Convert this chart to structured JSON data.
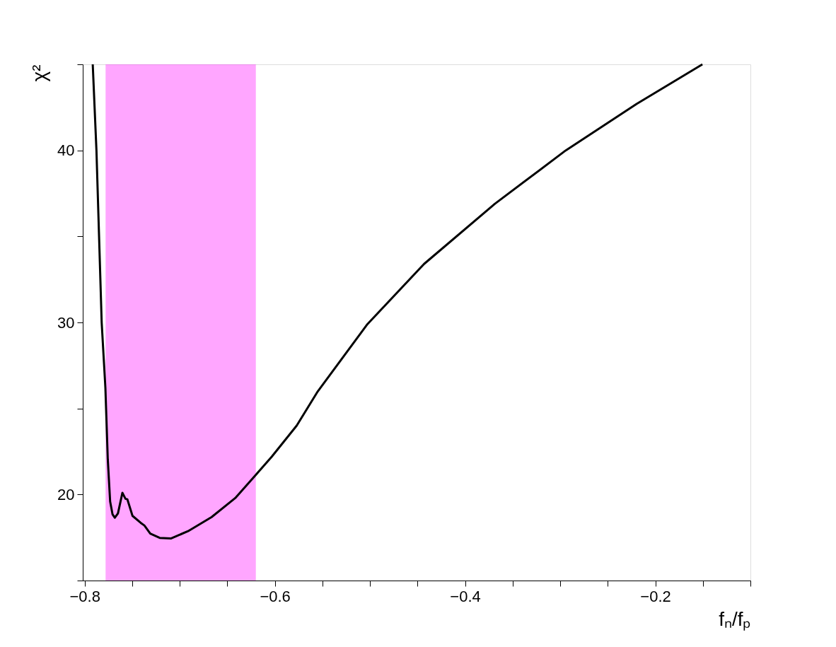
{
  "chart_data": {
    "type": "line",
    "xlabel": "fₙ/fₚ",
    "ylabel": "χ²",
    "xlim": [
      -0.802,
      -0.1
    ],
    "ylim": [
      15,
      45
    ],
    "xticks": [
      -0.8,
      {
        "value": -0.75,
        "label": null
      },
      {
        "value": -0.7,
        "label": null
      },
      {
        "value": -0.65,
        "label": null
      },
      -0.6,
      {
        "value": -0.55,
        "label": null
      },
      {
        "value": -0.5,
        "label": null
      },
      {
        "value": -0.45,
        "label": null
      },
      -0.4,
      {
        "value": -0.35,
        "label": null
      },
      {
        "value": -0.3,
        "label": null
      },
      {
        "value": -0.25,
        "label": null
      },
      -0.2,
      {
        "value": -0.15,
        "label": null
      },
      {
        "value": -0.1,
        "label": null
      }
    ],
    "yticks": [
      {
        "value": 15,
        "label": null
      },
      20,
      {
        "value": 25,
        "label": null
      },
      30,
      {
        "value": 35,
        "label": null
      },
      40,
      {
        "value": 45,
        "label": null
      }
    ],
    "grid": false,
    "marker": "none",
    "line_style": "solid",
    "bands": [
      {
        "axis": "x",
        "from": -0.778,
        "to": -0.62,
        "color": "#ff00ff"
      }
    ],
    "series": [
      {
        "color": "#000000",
        "x": [
          -0.7915,
          -0.7876,
          -0.7821,
          -0.7782,
          -0.7757,
          -0.7732,
          -0.7707,
          -0.7683,
          -0.765,
          -0.7603,
          -0.7571,
          -0.7551,
          -0.7497,
          -0.741,
          -0.7372,
          -0.731,
          -0.7211,
          -0.709,
          -0.6913,
          -0.6665,
          -0.6417,
          -0.6218,
          -0.6032,
          -0.5771,
          -0.5548,
          -0.5027,
          -0.4431,
          -0.3686,
          -0.2941,
          -0.2197,
          -0.1505
        ],
        "values": [
          45.0,
          40.0,
          30.0,
          26.2,
          22.06,
          19.59,
          18.85,
          18.65,
          18.9,
          20.1,
          19.75,
          19.72,
          18.76,
          18.35,
          18.2,
          17.73,
          17.48,
          17.45,
          17.87,
          18.69,
          19.79,
          21.03,
          22.2,
          24.0,
          26.0,
          29.9,
          33.4,
          36.9,
          40.0,
          42.7,
          45.0
        ]
      }
    ]
  }
}
